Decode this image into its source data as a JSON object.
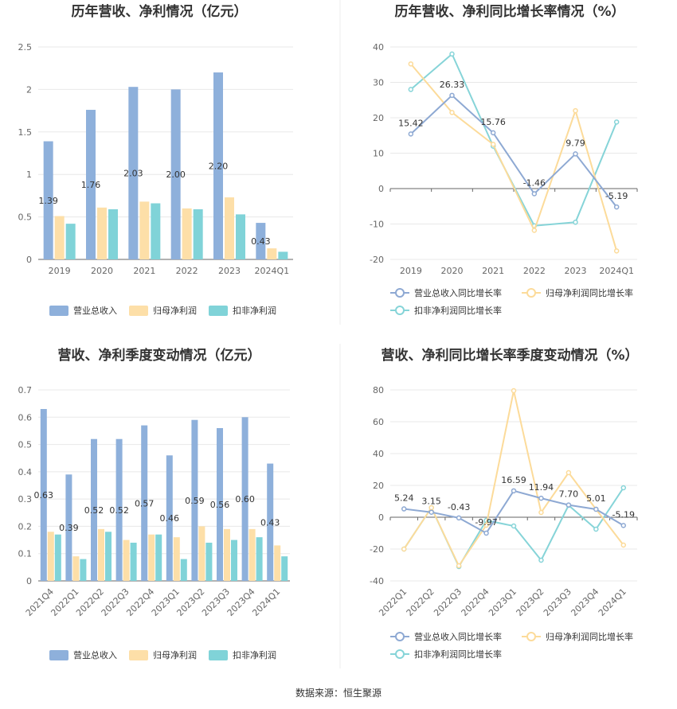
{
  "source_text": "数据来源：恒生聚源",
  "colors": {
    "revenue_bar": "#8EB0DB",
    "parent_np_bar": "#FDDFA8",
    "deducted_np_bar": "#80D3D8",
    "revenue_line": "#8EA9D3",
    "parent_np_line": "#FCDB9A",
    "deducted_np_line": "#86D4D8",
    "grid": "#E8E8E8",
    "axis": "#666666",
    "divider": "#EEEEEE"
  },
  "chart_data": [
    {
      "id": "annual_values",
      "type": "bar",
      "title": "历年营收、净利情况（亿元）",
      "categories": [
        "2019",
        "2020",
        "2021",
        "2022",
        "2023",
        "2024Q1"
      ],
      "y_ticks": [
        "0",
        "0.5",
        "1",
        "1.5",
        "2",
        "2.5"
      ],
      "ylim": [
        0,
        2.5
      ],
      "grid": true,
      "legend_position": "bottom",
      "series": [
        {
          "name": "营业总收入",
          "values": [
            1.39,
            1.76,
            2.03,
            2.0,
            2.2,
            0.43
          ],
          "labels": [
            "1.39",
            "1.76",
            "2.03",
            "2.00",
            "2.20",
            "0.43"
          ]
        },
        {
          "name": "归母净利润",
          "values": [
            0.51,
            0.61,
            0.68,
            0.6,
            0.73,
            0.13
          ]
        },
        {
          "name": "扣非净利润",
          "values": [
            0.42,
            0.59,
            0.66,
            0.59,
            0.53,
            0.09
          ]
        }
      ]
    },
    {
      "id": "annual_growth",
      "type": "line",
      "title": "历年营收、净利同比增长率情况（%）",
      "categories": [
        "2019",
        "2020",
        "2021",
        "2022",
        "2023",
        "2024Q1"
      ],
      "y_ticks": [
        "-20",
        "-10",
        "0",
        "10",
        "20",
        "30",
        "40"
      ],
      "ylim": [
        -20,
        40
      ],
      "grid": true,
      "legend_position": "bottom",
      "series": [
        {
          "name": "营业总收入同比增长率",
          "values": [
            15.42,
            26.33,
            15.76,
            -1.46,
            9.79,
            -5.19
          ],
          "labels": [
            "15.42",
            "26.33",
            "15.76",
            "-1.46",
            "9.79",
            "-5.19"
          ]
        },
        {
          "name": "归母净利润同比增长率",
          "values": [
            35.2,
            21.5,
            12.5,
            -11.8,
            22.0,
            -17.6
          ]
        },
        {
          "name": "扣非净利润同比增长率",
          "values": [
            28.0,
            38.0,
            12.0,
            -10.5,
            -9.5,
            18.8
          ]
        }
      ]
    },
    {
      "id": "quarterly_values",
      "type": "bar",
      "title": "营收、净利季度变动情况（亿元）",
      "categories": [
        "2021Q4",
        "2022Q1",
        "2022Q2",
        "2022Q3",
        "2022Q4",
        "2023Q1",
        "2023Q2",
        "2023Q3",
        "2023Q4",
        "2024Q1"
      ],
      "y_ticks": [
        "0",
        "0.1",
        "0.2",
        "0.3",
        "0.4",
        "0.5",
        "0.6",
        "0.7"
      ],
      "ylim": [
        0,
        0.7
      ],
      "grid": true,
      "legend_position": "bottom",
      "series": [
        {
          "name": "营业总收入",
          "values": [
            0.63,
            0.39,
            0.52,
            0.52,
            0.57,
            0.46,
            0.59,
            0.56,
            0.6,
            0.43
          ],
          "labels": [
            "0.63",
            "0.39",
            "0.52",
            "0.52",
            "0.57",
            "0.46",
            "0.59",
            "0.56",
            "0.60",
            "0.43"
          ]
        },
        {
          "name": "归母净利润",
          "values": [
            0.18,
            0.09,
            0.19,
            0.15,
            0.17,
            0.16,
            0.2,
            0.19,
            0.19,
            0.13
          ]
        },
        {
          "name": "扣非净利润",
          "values": [
            0.17,
            0.08,
            0.18,
            0.14,
            0.17,
            0.08,
            0.14,
            0.15,
            0.16,
            0.09
          ]
        }
      ]
    },
    {
      "id": "quarterly_growth",
      "type": "line",
      "title": "营收、净利同比增长率季度变动情况（%）",
      "categories": [
        "2022Q1",
        "2022Q2",
        "2022Q3",
        "2022Q4",
        "2023Q1",
        "2023Q2",
        "2023Q3",
        "2023Q4",
        "2024Q1"
      ],
      "y_ticks": [
        "-40",
        "-20",
        "0",
        "20",
        "40",
        "60",
        "80"
      ],
      "ylim": [
        -40,
        80
      ],
      "grid": true,
      "legend_position": "bottom",
      "series": [
        {
          "name": "营业总收入同比增长率",
          "values": [
            5.24,
            3.15,
            -0.43,
            -9.97,
            16.59,
            11.94,
            7.7,
            5.01,
            -5.19
          ],
          "labels": [
            "5.24",
            "3.15",
            "-0.43",
            "-9.97",
            "16.59",
            "11.94",
            "7.70",
            "5.01",
            "-5.19"
          ]
        },
        {
          "name": "归母净利润同比增长率",
          "values": [
            -20.0,
            6.0,
            -30.5,
            -5.0,
            79.5,
            3.0,
            28.0,
            5.0,
            -17.5
          ]
        },
        {
          "name": "扣非净利润同比增长率",
          "values": [
            -20.0,
            6.0,
            -31.0,
            -2.0,
            -5.5,
            -27.0,
            7.5,
            -7.5,
            18.5
          ]
        }
      ]
    }
  ]
}
